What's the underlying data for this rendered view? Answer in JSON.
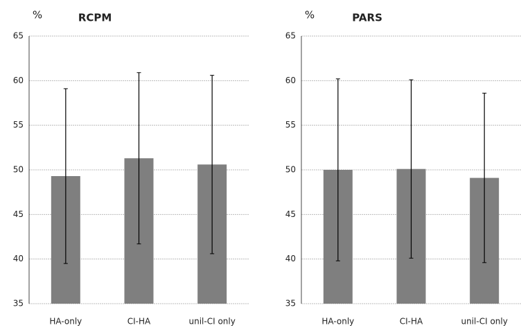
{
  "chart_data": [
    {
      "type": "bar",
      "title": "RCPM",
      "y_label": "%",
      "categories": [
        "HA-only",
        "CI-HA",
        "unil-CI only"
      ],
      "values": [
        49.3,
        51.3,
        50.6
      ],
      "errors": [
        9.8,
        9.6,
        10.0
      ],
      "color": "#7f7f7f",
      "ylim": [
        35,
        65
      ],
      "yticks": [
        35,
        40,
        45,
        50,
        55,
        60,
        65
      ],
      "grid": true
    },
    {
      "type": "bar",
      "title": "PARS",
      "y_label": "%",
      "categories": [
        "HA-only",
        "CI-HA",
        "unil-CI only"
      ],
      "values": [
        50.0,
        50.1,
        49.1
      ],
      "errors": [
        10.2,
        10.0,
        9.5
      ],
      "color": "#7f7f7f",
      "ylim": [
        35,
        65
      ],
      "yticks": [
        35,
        40,
        45,
        50,
        55,
        60,
        65
      ],
      "grid": true
    }
  ]
}
